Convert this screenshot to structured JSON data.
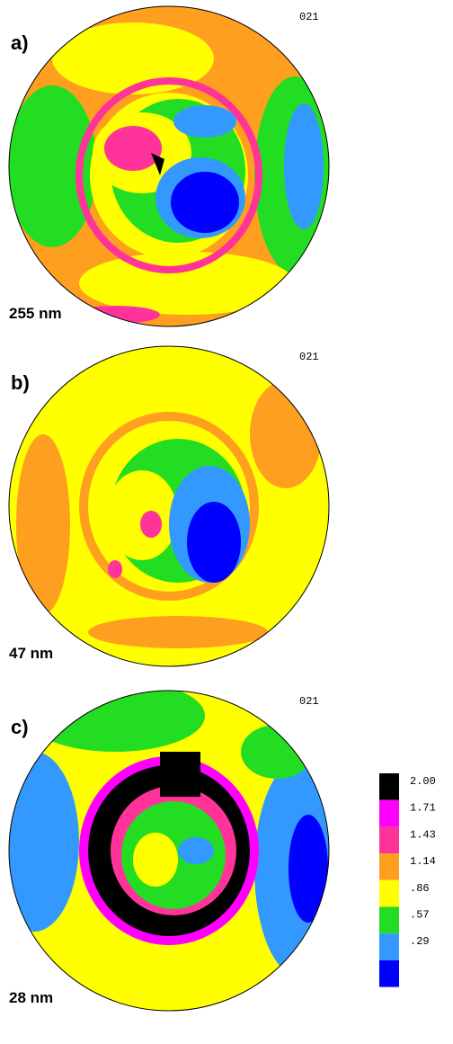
{
  "panels": [
    {
      "label": "a)",
      "pole": "021",
      "thickness": "255 nm"
    },
    {
      "label": "b)",
      "pole": "021",
      "thickness": "47 nm"
    },
    {
      "label": "c)",
      "pole": "021",
      "thickness": "28 nm"
    }
  ],
  "legend": [
    {
      "label": "2.00",
      "color": "#000000"
    },
    {
      "label": "1.71",
      "color": "#ff00ff"
    },
    {
      "label": "1.43",
      "color": "#ff3399"
    },
    {
      "label": "1.14",
      "color": "#ff9f1f"
    },
    {
      "label": ".86",
      "color": "#ffff00"
    },
    {
      "label": ".57",
      "color": "#22dd22"
    },
    {
      "label": ".29",
      "color": "#3399ff"
    },
    {
      "color": "#0000ff"
    }
  ]
}
